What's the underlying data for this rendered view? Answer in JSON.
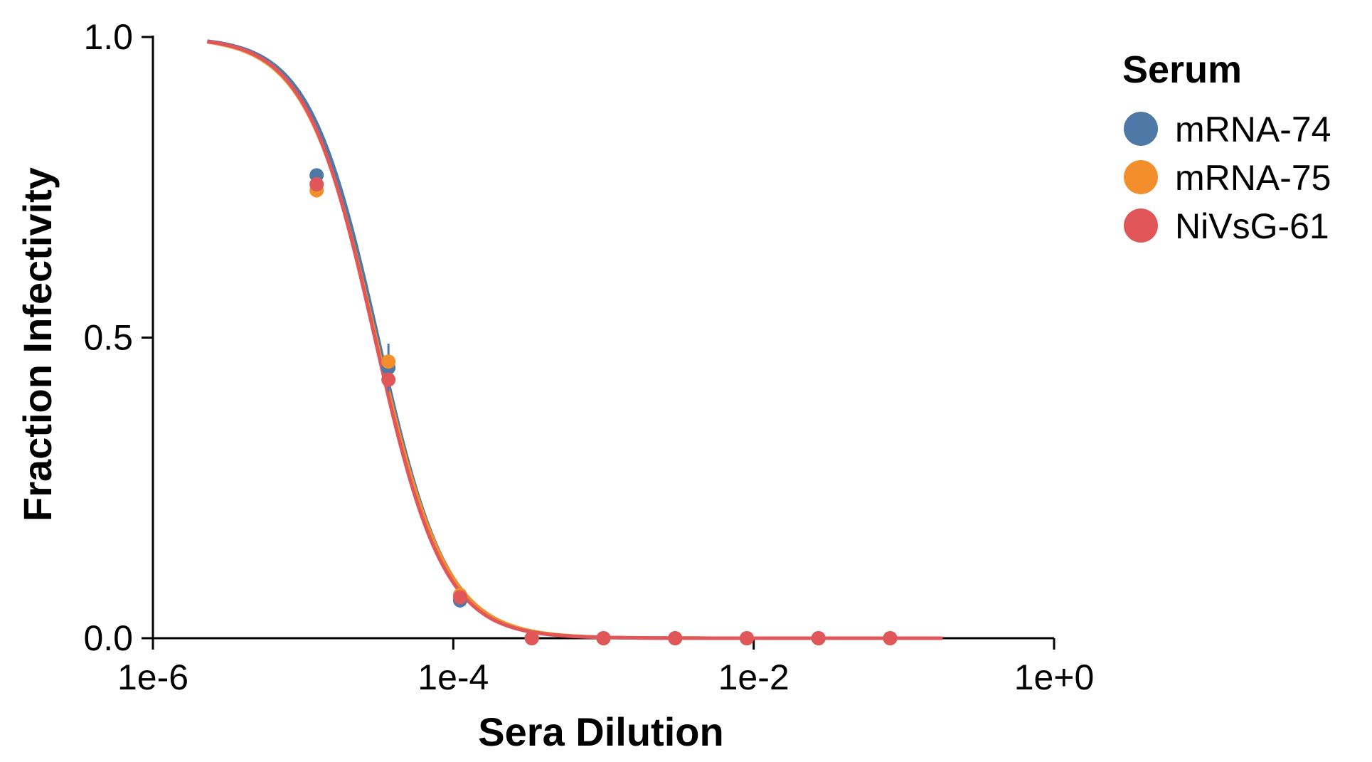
{
  "chart_data": {
    "type": "scatter",
    "title": "",
    "xlabel": "Sera Dilution",
    "ylabel": "Fraction Infectivity",
    "x_scale": "log",
    "xlim": [
      1e-06,
      1
    ],
    "ylim": [
      0,
      1
    ],
    "x_ticks": [
      1e-06,
      0.0001,
      0.01,
      1
    ],
    "x_tick_labels": [
      "1e-6",
      "1e-4",
      "1e-2",
      "1e+0"
    ],
    "y_ticks": [
      0,
      0.5,
      1
    ],
    "y_tick_labels": [
      "0.0",
      "0.5",
      "1.0"
    ],
    "grid": false,
    "legend": {
      "title": "Serum",
      "placement": "right"
    },
    "series": [
      {
        "name": "mRNA-74",
        "color": "#4e79a7",
        "points": [
          {
            "x": 1.23e-05,
            "y": 0.77,
            "err": 0.01
          },
          {
            "x": 3.7e-05,
            "y": 0.45,
            "err": 0.04
          },
          {
            "x": 0.000111,
            "y": 0.063,
            "err": 0.012
          },
          {
            "x": 0.000333,
            "y": 0.0
          },
          {
            "x": 0.001,
            "y": 0.0
          },
          {
            "x": 0.003,
            "y": 0.0
          },
          {
            "x": 0.009,
            "y": 0.0
          },
          {
            "x": 0.027,
            "y": 0.0
          },
          {
            "x": 0.081,
            "y": 0.0
          }
        ],
        "fit": {
          "ic50": 3.15e-05,
          "hill": 1.9,
          "x_range": [
            2.3e-06,
            0.181
          ]
        }
      },
      {
        "name": "mRNA-75",
        "color": "#f28e2b",
        "points": [
          {
            "x": 1.23e-05,
            "y": 0.745,
            "err": 0.012
          },
          {
            "x": 3.7e-05,
            "y": 0.46,
            "err": 0.01
          },
          {
            "x": 0.000111,
            "y": 0.072,
            "err": 0.01
          },
          {
            "x": 0.000333,
            "y": 0.0
          },
          {
            "x": 0.001,
            "y": 0.0
          },
          {
            "x": 0.003,
            "y": 0.0
          },
          {
            "x": 0.009,
            "y": 0.0
          },
          {
            "x": 0.027,
            "y": 0.0
          },
          {
            "x": 0.081,
            "y": 0.0
          }
        ],
        "fit": {
          "ic50": 3.05e-05,
          "hill": 1.85,
          "x_range": [
            2.3e-06,
            0.181
          ]
        }
      },
      {
        "name": "NiVsG-61",
        "color": "#e15759",
        "points": [
          {
            "x": 1.23e-05,
            "y": 0.755,
            "err": 0.01
          },
          {
            "x": 3.7e-05,
            "y": 0.43,
            "err": 0.01
          },
          {
            "x": 0.000111,
            "y": 0.068,
            "err": 0.01
          },
          {
            "x": 0.000333,
            "y": 0.0
          },
          {
            "x": 0.001,
            "y": 0.0
          },
          {
            "x": 0.003,
            "y": 0.0
          },
          {
            "x": 0.009,
            "y": 0.0
          },
          {
            "x": 0.027,
            "y": 0.0
          },
          {
            "x": 0.081,
            "y": 0.0
          }
        ],
        "fit": {
          "ic50": 3e-05,
          "hill": 1.9,
          "x_range": [
            2.3e-06,
            0.181
          ]
        }
      }
    ]
  }
}
